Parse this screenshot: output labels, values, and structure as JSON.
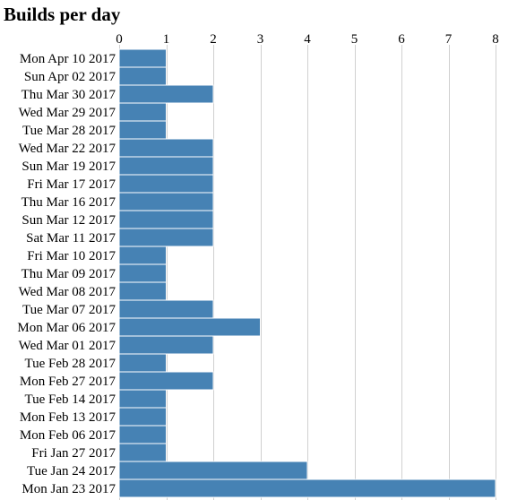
{
  "chart_data": {
    "type": "bar",
    "orientation": "horizontal",
    "title": "Builds per day",
    "xlabel": "",
    "ylabel": "",
    "xlim": [
      0,
      8
    ],
    "x_ticks": [
      "0",
      "1",
      "2",
      "3",
      "4",
      "5",
      "6",
      "7",
      "8"
    ],
    "grid": "vertical",
    "legend": "none",
    "bar_color": "#4682b4",
    "categories": [
      "Mon Apr 10 2017",
      "Sun Apr 02 2017",
      "Thu Mar 30 2017",
      "Wed Mar 29 2017",
      "Tue Mar 28 2017",
      "Wed Mar 22 2017",
      "Sun Mar 19 2017",
      "Fri Mar 17 2017",
      "Thu Mar 16 2017",
      "Sun Mar 12 2017",
      "Sat Mar 11 2017",
      "Fri Mar 10 2017",
      "Thu Mar 09 2017",
      "Wed Mar 08 2017",
      "Tue Mar 07 2017",
      "Mon Mar 06 2017",
      "Wed Mar 01 2017",
      "Tue Feb 28 2017",
      "Mon Feb 27 2017",
      "Tue Feb 14 2017",
      "Mon Feb 13 2017",
      "Mon Feb 06 2017",
      "Fri Jan 27 2017",
      "Tue Jan 24 2017",
      "Mon Jan 23 2017"
    ],
    "values": [
      1,
      1,
      2,
      1,
      1,
      2,
      2,
      2,
      2,
      2,
      2,
      1,
      1,
      1,
      2,
      3,
      2,
      1,
      2,
      1,
      1,
      1,
      1,
      4,
      8
    ]
  }
}
